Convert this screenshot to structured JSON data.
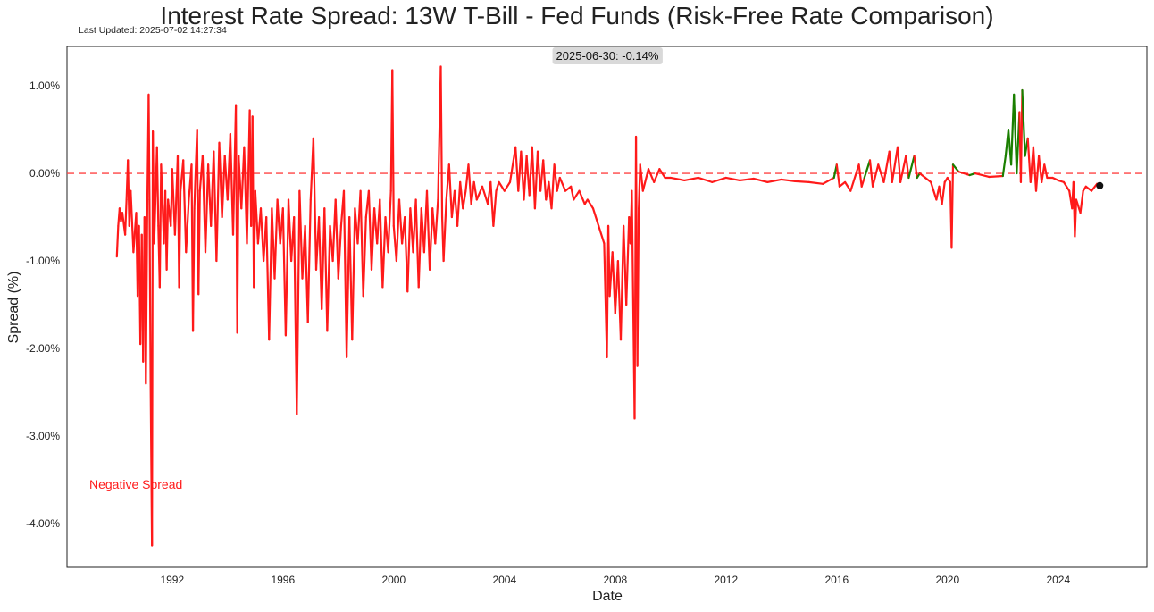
{
  "title": "Interest Rate Spread: 13W T-Bill - Fed Funds (Risk-Free Rate Comparison)",
  "last_updated": "Last Updated: 2025-07-02 14:27:34",
  "chart_data": {
    "type": "line",
    "title": "Interest Rate Spread: 13W T-Bill - Fed Funds (Risk-Free Rate Comparison)",
    "xlabel": "Date",
    "ylabel": "Spread (%)",
    "xlim": [
      1988.2,
      2027.2
    ],
    "ylim": [
      -4.5,
      1.45
    ],
    "x_ticks": [
      1992,
      1996,
      2000,
      2004,
      2008,
      2012,
      2016,
      2020,
      2024
    ],
    "y_ticks": [
      1.0,
      0.0,
      -1.0,
      -2.0,
      -3.0,
      -4.0
    ],
    "y_tick_labels": [
      "1.00%",
      "0.00%",
      "-1.00%",
      "-2.00%",
      "-3.00%",
      "-4.00%"
    ],
    "zero_line": 0.0,
    "grid": false,
    "colors": {
      "positive": "#1a7f00",
      "negative": "#ff1a1a",
      "zero_line": "#ff4444"
    },
    "annotation": {
      "text": "2025-06-30: -0.14%",
      "x": 2025.5,
      "y": -0.14
    },
    "negative_label": "Negative Spread",
    "series": [
      {
        "values": [
          [
            1990.0,
            -0.95
          ],
          [
            1990.05,
            -0.6
          ],
          [
            1990.1,
            -0.4
          ],
          [
            1990.15,
            -0.55
          ],
          [
            1990.2,
            -0.45
          ],
          [
            1990.3,
            -0.7
          ],
          [
            1990.35,
            -0.3
          ],
          [
            1990.4,
            0.15
          ],
          [
            1990.45,
            -0.6
          ],
          [
            1990.5,
            -0.2
          ],
          [
            1990.6,
            -0.9
          ],
          [
            1990.7,
            -0.45
          ],
          [
            1990.75,
            -1.4
          ],
          [
            1990.8,
            -0.6
          ],
          [
            1990.85,
            -1.95
          ],
          [
            1990.9,
            -0.7
          ],
          [
            1990.95,
            -2.15
          ],
          [
            1991.0,
            -0.5
          ],
          [
            1991.05,
            -2.4
          ],
          [
            1991.1,
            -0.4
          ],
          [
            1991.15,
            0.9
          ],
          [
            1991.18,
            -0.3
          ],
          [
            1991.22,
            -2.38
          ],
          [
            1991.27,
            -4.25
          ],
          [
            1991.3,
            0.48
          ],
          [
            1991.35,
            -0.8
          ],
          [
            1991.45,
            0.3
          ],
          [
            1991.5,
            -0.6
          ],
          [
            1991.55,
            -1.3
          ],
          [
            1991.6,
            0.1
          ],
          [
            1991.7,
            -0.8
          ],
          [
            1991.75,
            -0.2
          ],
          [
            1991.8,
            -1.1
          ],
          [
            1991.85,
            -0.3
          ],
          [
            1991.95,
            -0.6
          ],
          [
            1992.0,
            0.05
          ],
          [
            1992.1,
            -0.7
          ],
          [
            1992.2,
            0.2
          ],
          [
            1992.25,
            -1.3
          ],
          [
            1992.3,
            -0.2
          ],
          [
            1992.4,
            0.15
          ],
          [
            1992.5,
            -0.9
          ],
          [
            1992.6,
            -0.3
          ],
          [
            1992.7,
            0.1
          ],
          [
            1992.75,
            -1.8
          ],
          [
            1992.8,
            -0.4
          ],
          [
            1992.9,
            0.5
          ],
          [
            1992.95,
            -1.38
          ],
          [
            1993.0,
            -0.2
          ],
          [
            1993.1,
            0.2
          ],
          [
            1993.2,
            -0.9
          ],
          [
            1993.3,
            0.1
          ],
          [
            1993.4,
            -0.6
          ],
          [
            1993.5,
            0.25
          ],
          [
            1993.6,
            -1.0
          ],
          [
            1993.7,
            0.35
          ],
          [
            1993.8,
            -0.5
          ],
          [
            1993.9,
            0.2
          ],
          [
            1994.0,
            -0.3
          ],
          [
            1994.1,
            0.45
          ],
          [
            1994.2,
            -0.7
          ],
          [
            1994.3,
            0.78
          ],
          [
            1994.35,
            -1.82
          ],
          [
            1994.4,
            0.2
          ],
          [
            1994.5,
            -0.4
          ],
          [
            1994.6,
            0.3
          ],
          [
            1994.7,
            -0.8
          ],
          [
            1994.8,
            0.72
          ],
          [
            1994.85,
            -0.6
          ],
          [
            1994.9,
            0.65
          ],
          [
            1994.95,
            -1.3
          ],
          [
            1995.0,
            -0.2
          ],
          [
            1995.1,
            -0.8
          ],
          [
            1995.2,
            -0.4
          ],
          [
            1995.3,
            -1.0
          ],
          [
            1995.4,
            -0.5
          ],
          [
            1995.5,
            -1.9
          ],
          [
            1995.6,
            -0.4
          ],
          [
            1995.7,
            -1.2
          ],
          [
            1995.8,
            -0.3
          ],
          [
            1995.9,
            -0.8
          ],
          [
            1996.0,
            -0.4
          ],
          [
            1996.1,
            -1.85
          ],
          [
            1996.2,
            -0.3
          ],
          [
            1996.3,
            -1.0
          ],
          [
            1996.4,
            -0.5
          ],
          [
            1996.5,
            -2.75
          ],
          [
            1996.6,
            -0.2
          ],
          [
            1996.7,
            -1.2
          ],
          [
            1996.8,
            -0.6
          ],
          [
            1996.9,
            -1.7
          ],
          [
            1997.0,
            -0.3
          ],
          [
            1997.1,
            0.4
          ],
          [
            1997.2,
            -1.1
          ],
          [
            1997.3,
            -0.5
          ],
          [
            1997.4,
            -1.55
          ],
          [
            1997.5,
            -0.4
          ],
          [
            1997.6,
            -1.8
          ],
          [
            1997.7,
            -0.6
          ],
          [
            1997.8,
            -1.0
          ],
          [
            1997.9,
            -0.3
          ],
          [
            1998.0,
            -1.2
          ],
          [
            1998.1,
            -0.6
          ],
          [
            1998.2,
            -0.2
          ],
          [
            1998.3,
            -2.1
          ],
          [
            1998.4,
            -0.5
          ],
          [
            1998.5,
            -1.9
          ],
          [
            1998.6,
            -0.4
          ],
          [
            1998.7,
            -0.8
          ],
          [
            1998.8,
            -0.2
          ],
          [
            1998.9,
            -1.4
          ],
          [
            1999.0,
            -0.5
          ],
          [
            1999.1,
            -0.2
          ],
          [
            1999.2,
            -1.1
          ],
          [
            1999.3,
            -0.4
          ],
          [
            1999.4,
            -0.8
          ],
          [
            1999.5,
            -0.3
          ],
          [
            1999.6,
            -1.3
          ],
          [
            1999.7,
            -0.5
          ],
          [
            1999.8,
            -0.9
          ],
          [
            1999.9,
            -0.2
          ],
          [
            1999.95,
            1.18
          ],
          [
            2000.0,
            -0.6
          ],
          [
            2000.1,
            -1.0
          ],
          [
            2000.2,
            -0.3
          ],
          [
            2000.3,
            -0.8
          ],
          [
            2000.4,
            -0.5
          ],
          [
            2000.5,
            -1.35
          ],
          [
            2000.6,
            -0.4
          ],
          [
            2000.7,
            -0.9
          ],
          [
            2000.8,
            -0.3
          ],
          [
            2000.9,
            -1.3
          ],
          [
            2001.0,
            -0.4
          ],
          [
            2001.1,
            -0.9
          ],
          [
            2001.2,
            -0.2
          ],
          [
            2001.3,
            -1.1
          ],
          [
            2001.4,
            -0.4
          ],
          [
            2001.5,
            -0.8
          ],
          [
            2001.6,
            -0.3
          ],
          [
            2001.7,
            1.22
          ],
          [
            2001.75,
            -0.5
          ],
          [
            2001.8,
            -1.0
          ],
          [
            2001.9,
            -0.3
          ],
          [
            2002.0,
            0.1
          ],
          [
            2002.1,
            -0.5
          ],
          [
            2002.2,
            -0.2
          ],
          [
            2002.3,
            -0.6
          ],
          [
            2002.4,
            -0.1
          ],
          [
            2002.5,
            -0.4
          ],
          [
            2002.6,
            -0.2
          ],
          [
            2002.7,
            0.1
          ],
          [
            2002.8,
            -0.35
          ],
          [
            2002.9,
            -0.1
          ],
          [
            2003.0,
            -0.3
          ],
          [
            2003.2,
            -0.15
          ],
          [
            2003.4,
            -0.35
          ],
          [
            2003.5,
            -0.1
          ],
          [
            2003.6,
            -0.6
          ],
          [
            2003.7,
            -0.2
          ],
          [
            2003.8,
            -0.1
          ],
          [
            2004.0,
            -0.2
          ],
          [
            2004.2,
            -0.1
          ],
          [
            2004.4,
            0.3
          ],
          [
            2004.5,
            -0.2
          ],
          [
            2004.6,
            0.25
          ],
          [
            2004.7,
            -0.3
          ],
          [
            2004.8,
            0.2
          ],
          [
            2004.9,
            -0.25
          ],
          [
            2005.0,
            0.3
          ],
          [
            2005.1,
            -0.4
          ],
          [
            2005.2,
            0.25
          ],
          [
            2005.3,
            -0.2
          ],
          [
            2005.4,
            0.15
          ],
          [
            2005.5,
            -0.3
          ],
          [
            2005.6,
            -0.1
          ],
          [
            2005.7,
            -0.4
          ],
          [
            2005.8,
            0.1
          ],
          [
            2005.9,
            -0.2
          ],
          [
            2006.0,
            -0.05
          ],
          [
            2006.2,
            -0.2
          ],
          [
            2006.4,
            -0.15
          ],
          [
            2006.5,
            -0.3
          ],
          [
            2006.7,
            -0.2
          ],
          [
            2006.9,
            -0.35
          ],
          [
            2007.0,
            -0.3
          ],
          [
            2007.2,
            -0.4
          ],
          [
            2007.4,
            -0.6
          ],
          [
            2007.6,
            -0.8
          ],
          [
            2007.7,
            -2.1
          ],
          [
            2007.75,
            -0.6
          ],
          [
            2007.8,
            -1.4
          ],
          [
            2007.9,
            -0.9
          ],
          [
            2008.0,
            -1.6
          ],
          [
            2008.1,
            -1.0
          ],
          [
            2008.2,
            -1.9
          ],
          [
            2008.3,
            -0.6
          ],
          [
            2008.4,
            -1.5
          ],
          [
            2008.5,
            -0.5
          ],
          [
            2008.55,
            -0.8
          ],
          [
            2008.6,
            -0.2
          ],
          [
            2008.7,
            -2.8
          ],
          [
            2008.75,
            0.42
          ],
          [
            2008.8,
            -2.2
          ],
          [
            2008.85,
            -0.4
          ],
          [
            2008.9,
            0.1
          ],
          [
            2009.0,
            -0.2
          ],
          [
            2009.2,
            0.05
          ],
          [
            2009.4,
            -0.1
          ],
          [
            2009.6,
            0.05
          ],
          [
            2009.8,
            -0.05
          ],
          [
            2010.0,
            -0.05
          ],
          [
            2010.5,
            -0.08
          ],
          [
            2011.0,
            -0.05
          ],
          [
            2011.5,
            -0.1
          ],
          [
            2012.0,
            -0.05
          ],
          [
            2012.5,
            -0.08
          ],
          [
            2013.0,
            -0.06
          ],
          [
            2013.5,
            -0.1
          ],
          [
            2014.0,
            -0.07
          ],
          [
            2014.5,
            -0.09
          ],
          [
            2015.0,
            -0.1
          ],
          [
            2015.5,
            -0.12
          ],
          [
            2015.9,
            -0.05
          ],
          [
            2016.0,
            0.1
          ],
          [
            2016.1,
            -0.15
          ],
          [
            2016.3,
            -0.1
          ],
          [
            2016.5,
            -0.2
          ],
          [
            2016.8,
            0.1
          ],
          [
            2016.9,
            -0.15
          ],
          [
            2017.0,
            -0.05
          ],
          [
            2017.2,
            0.15
          ],
          [
            2017.3,
            -0.15
          ],
          [
            2017.5,
            0.1
          ],
          [
            2017.7,
            -0.1
          ],
          [
            2017.9,
            0.25
          ],
          [
            2018.0,
            -0.1
          ],
          [
            2018.2,
            0.3
          ],
          [
            2018.3,
            -0.1
          ],
          [
            2018.5,
            0.2
          ],
          [
            2018.6,
            -0.05
          ],
          [
            2018.8,
            0.2
          ],
          [
            2018.9,
            -0.05
          ],
          [
            2019.0,
            0.0
          ],
          [
            2019.2,
            -0.05
          ],
          [
            2019.4,
            -0.1
          ],
          [
            2019.6,
            -0.3
          ],
          [
            2019.7,
            -0.15
          ],
          [
            2019.8,
            -0.35
          ],
          [
            2019.9,
            -0.1
          ],
          [
            2020.0,
            -0.05
          ],
          [
            2020.1,
            -0.1
          ],
          [
            2020.15,
            -0.85
          ],
          [
            2020.2,
            0.1
          ],
          [
            2020.4,
            0.02
          ],
          [
            2020.8,
            -0.02
          ],
          [
            2021.0,
            0.0
          ],
          [
            2021.5,
            -0.04
          ],
          [
            2022.0,
            -0.03
          ],
          [
            2022.1,
            0.2
          ],
          [
            2022.2,
            0.5
          ],
          [
            2022.3,
            0.1
          ],
          [
            2022.4,
            0.9
          ],
          [
            2022.5,
            0.0
          ],
          [
            2022.6,
            0.7
          ],
          [
            2022.65,
            -0.1
          ],
          [
            2022.7,
            0.95
          ],
          [
            2022.8,
            0.2
          ],
          [
            2022.9,
            0.4
          ],
          [
            2023.0,
            -0.1
          ],
          [
            2023.1,
            0.3
          ],
          [
            2023.2,
            -0.2
          ],
          [
            2023.3,
            0.2
          ],
          [
            2023.4,
            -0.1
          ],
          [
            2023.5,
            0.1
          ],
          [
            2023.6,
            -0.05
          ],
          [
            2023.8,
            -0.05
          ],
          [
            2024.0,
            -0.08
          ],
          [
            2024.2,
            -0.1
          ],
          [
            2024.4,
            -0.2
          ],
          [
            2024.5,
            -0.4
          ],
          [
            2024.55,
            -0.1
          ],
          [
            2024.6,
            -0.72
          ],
          [
            2024.65,
            -0.3
          ],
          [
            2024.8,
            -0.45
          ],
          [
            2024.9,
            -0.2
          ],
          [
            2025.0,
            -0.15
          ],
          [
            2025.2,
            -0.2
          ],
          [
            2025.4,
            -0.12
          ],
          [
            2025.5,
            -0.14
          ]
        ]
      }
    ]
  }
}
